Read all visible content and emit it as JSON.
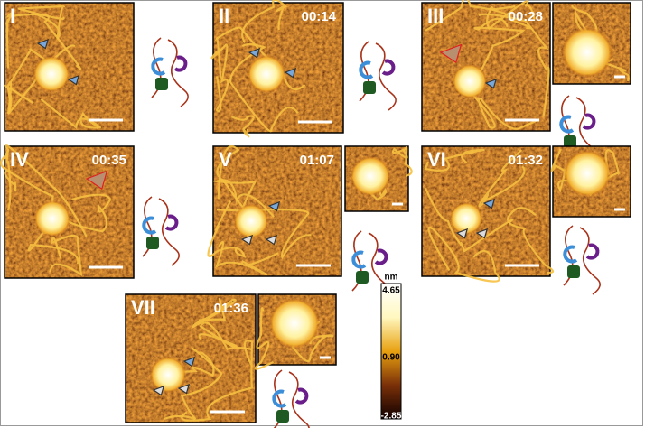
{
  "panels": [
    {
      "label": "I"
    },
    {
      "label": "II",
      "time": "00:14"
    },
    {
      "label": "III",
      "time": "00:28"
    },
    {
      "label": "IV",
      "time": "00:35"
    },
    {
      "label": "V",
      "time": "01:07"
    },
    {
      "label": "VI",
      "time": "01:32"
    },
    {
      "label": "VII",
      "time": "01:36"
    }
  ],
  "colorbar": {
    "unit": "nm",
    "max": "4.65",
    "mid": "0.90",
    "min": "-2.85"
  }
}
